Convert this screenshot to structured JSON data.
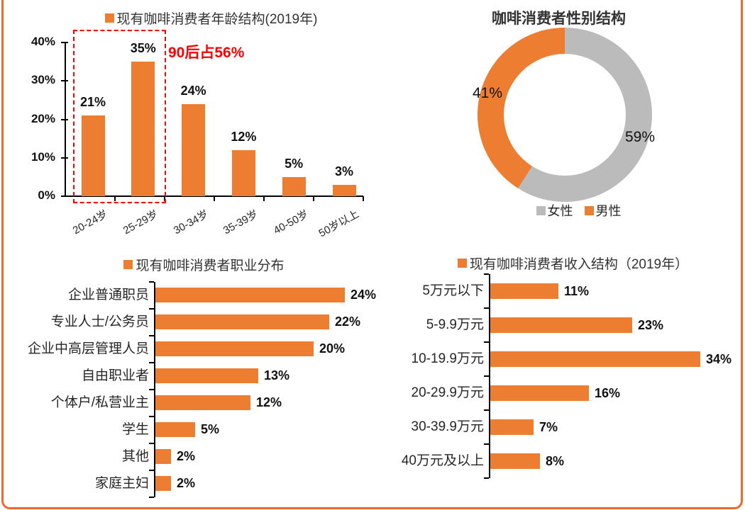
{
  "panel": {
    "border_color": "#ED6A2F",
    "background": "#FFFFFF"
  },
  "colors": {
    "orange": "#ED7D31",
    "gray": "#BBBBBB",
    "red": "#FF0000",
    "axis": "#000000",
    "text": "#262626"
  },
  "chart_data": [
    {
      "id": "age",
      "type": "bar",
      "orientation": "vertical",
      "title": "现有咖啡消费者年龄结构(2019年)",
      "legend_marker_color": "#ED7D31",
      "categories": [
        "20-24岁",
        "25-29岁",
        "30-34岁",
        "35-39岁",
        "40-50岁",
        "50岁以上"
      ],
      "values": [
        21,
        35,
        24,
        12,
        5,
        3
      ],
      "unit": "%",
      "ylim": [
        0,
        40
      ],
      "yticks": [
        "40%",
        "30%",
        "20%",
        "10%",
        "0%"
      ],
      "grid": false,
      "annotation": "90后占56%",
      "annotation_color": "#FF0000",
      "highlight_box_categories": [
        "20-24岁",
        "25-29岁"
      ],
      "bar_color": "#ED7D31"
    },
    {
      "id": "gender",
      "type": "pie",
      "donut": true,
      "title": "咖啡消费者性别结构",
      "slices": [
        {
          "label": "女性",
          "value": 59,
          "color": "#BBBBBB"
        },
        {
          "label": "男性",
          "value": 41,
          "color": "#ED7D31"
        }
      ],
      "unit": "%",
      "start_angle_deg": 0,
      "direction": "clockwise",
      "legend_position": "bottom"
    },
    {
      "id": "occupation",
      "type": "bar",
      "orientation": "horizontal",
      "title": "现有咖啡消费者职业分布",
      "legend_marker_color": "#ED7D31",
      "categories": [
        "企业普通职员",
        "专业人士/公务员",
        "企业中高层管理人员",
        "自由职业者",
        "个体户/私营业主",
        "学生",
        "其他",
        "家庭主妇"
      ],
      "values": [
        24,
        22,
        20,
        13,
        12,
        5,
        2,
        2
      ],
      "unit": "%",
      "grid": false,
      "bar_color": "#ED7D31"
    },
    {
      "id": "income",
      "type": "bar",
      "orientation": "horizontal",
      "title": "现有咖啡消费者收入结构（2019年）",
      "legend_marker_color": "#ED7D31",
      "categories": [
        "5万元以下",
        "5-9.9万元",
        "10-19.9万元",
        "20-29.9万元",
        "30-39.9万元",
        "40万元及以上"
      ],
      "values": [
        11,
        23,
        34,
        16,
        7,
        8
      ],
      "unit": "%",
      "grid": false,
      "bar_color": "#ED7D31"
    }
  ]
}
